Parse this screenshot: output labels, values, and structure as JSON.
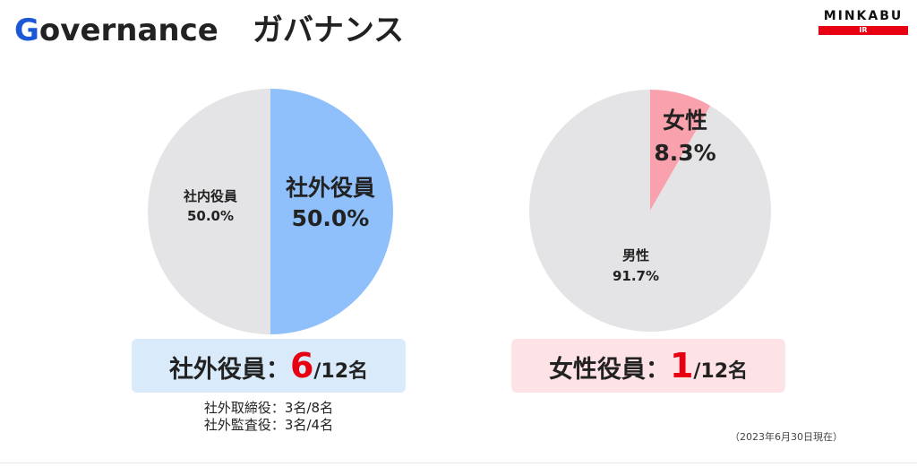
{
  "header": {
    "title_g": "G",
    "title_rest": "overnance",
    "title_jp": "ガバナンス",
    "brand_name": "MINKABU",
    "brand_sub": "IR"
  },
  "colors": {
    "accent_blue": "#1c58d6",
    "slice_outside": "#8fc0fb",
    "slice_neutral": "#e4e4e6",
    "slice_female": "#f9a1ad",
    "red": "#e60012",
    "box_blue": "#d9ebfb",
    "box_pink": "#fde3e5"
  },
  "chart_data": [
    {
      "type": "pie",
      "slices": [
        {
          "label": "社外役員",
          "value": 50.0,
          "display": "50.0%"
        },
        {
          "label": "社内役員",
          "value": 50.0,
          "display": "50.0%"
        }
      ]
    },
    {
      "type": "pie",
      "slices": [
        {
          "label": "女性",
          "value": 8.3,
          "display": "8.3%"
        },
        {
          "label": "男性",
          "value": 91.7,
          "display": "91.7%"
        }
      ]
    }
  ],
  "summary_left": {
    "label": "社外役員：",
    "count": "6",
    "total": "/12名",
    "note1": "社外取締役：3名/8名",
    "note2": "社外監査役：3名/4名"
  },
  "summary_right": {
    "label": "女性役員：",
    "count": "1",
    "total": "/12名"
  },
  "footnote": "（2023年6月30日現在）"
}
